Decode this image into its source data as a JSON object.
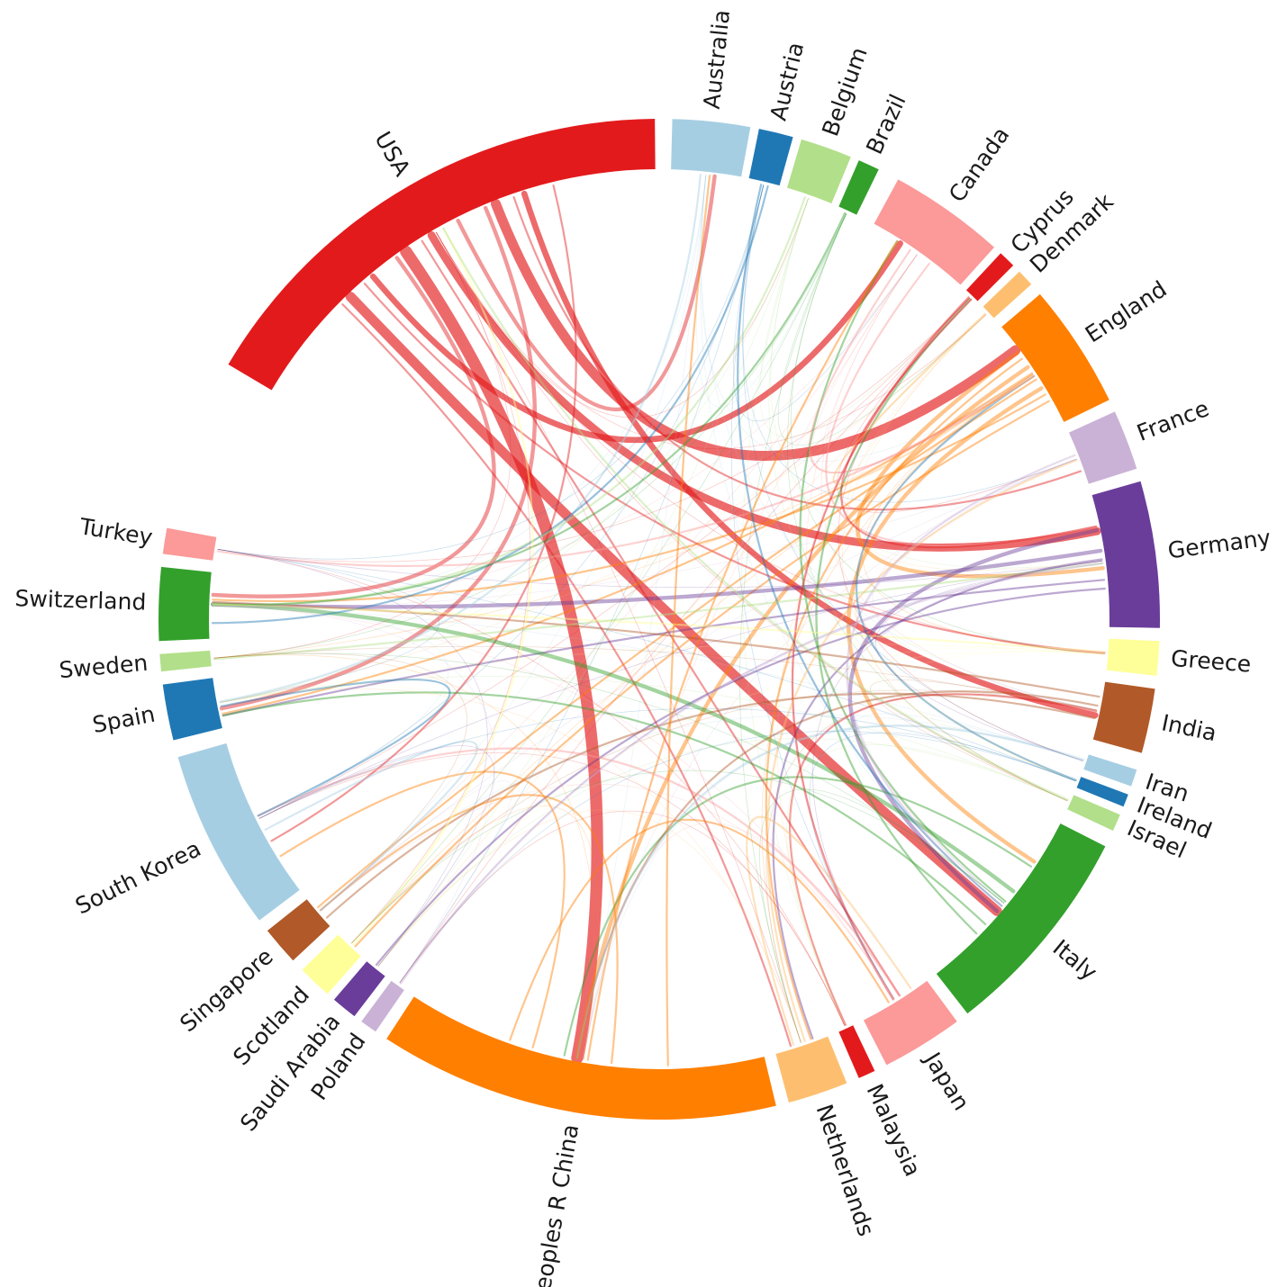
{
  "countries": [
    {
      "id": "australia",
      "name": "Australia",
      "color": "#a6cee3"
    },
    {
      "id": "austria",
      "name": "Austria",
      "color": "#1f78b4"
    },
    {
      "id": "belgium",
      "name": "Belgium",
      "color": "#b2df8a"
    },
    {
      "id": "brazil",
      "name": "Brazil",
      "color": "#33a02c"
    },
    {
      "id": "canada",
      "name": "Canada",
      "color": "#fb9a99"
    },
    {
      "id": "cyprus",
      "name": "Cyprus",
      "color": "#e31a1c"
    },
    {
      "id": "denmark",
      "name": "Denmark",
      "color": "#fdbf6f"
    },
    {
      "id": "england",
      "name": "England",
      "color": "#ff7f00"
    },
    {
      "id": "france",
      "name": "France",
      "color": "#cab2d6"
    },
    {
      "id": "germany",
      "name": "Germany",
      "color": "#6a3d9a"
    },
    {
      "id": "greece",
      "name": "Greece",
      "color": "#ffff99"
    },
    {
      "id": "india",
      "name": "India",
      "color": "#b15928"
    },
    {
      "id": "iran",
      "name": "Iran",
      "color": "#a6cee3"
    },
    {
      "id": "ireland",
      "name": "Ireland",
      "color": "#1f78b4"
    },
    {
      "id": "israel",
      "name": "Israel",
      "color": "#b2df8a"
    },
    {
      "id": "italy",
      "name": "Italy",
      "color": "#33a02c"
    },
    {
      "id": "japan",
      "name": "Japan",
      "color": "#fb9a99"
    },
    {
      "id": "malaysia",
      "name": "Malaysia",
      "color": "#e31a1c"
    },
    {
      "id": "netherlands",
      "name": "Netherlands",
      "color": "#fdbf6f"
    },
    {
      "id": "china",
      "name": "Peoples R China",
      "color": "#ff7f00"
    },
    {
      "id": "poland",
      "name": "Poland",
      "color": "#cab2d6"
    },
    {
      "id": "saudi_arabia",
      "name": "Saudi Arabia",
      "color": "#6a3d9a"
    },
    {
      "id": "scotland",
      "name": "Scotland",
      "color": "#ffff99"
    },
    {
      "id": "singapore",
      "name": "Singapore",
      "color": "#b15928"
    },
    {
      "id": "south_korea",
      "name": "South Korea",
      "color": "#a6cee3"
    },
    {
      "id": "spain",
      "name": "Spain",
      "color": "#1f78b4"
    },
    {
      "id": "sweden",
      "name": "Sweden",
      "color": "#b2df8a"
    },
    {
      "id": "switzerland",
      "name": "Switzerland",
      "color": "#33a02c"
    },
    {
      "id": "turkey",
      "name": "Turkey",
      "color": "#fb9a99"
    },
    {
      "id": "usa",
      "name": "USA",
      "color": "#e31a1c"
    }
  ],
  "links": [
    {
      "source": "usa",
      "target": "china",
      "weight": 6
    },
    {
      "source": "usa",
      "target": "england",
      "weight": 5
    },
    {
      "source": "usa",
      "target": "italy",
      "weight": 5
    },
    {
      "source": "usa",
      "target": "germany",
      "weight": 4
    },
    {
      "source": "usa",
      "target": "india",
      "weight": 3
    },
    {
      "source": "usa",
      "target": "canada",
      "weight": 3
    },
    {
      "source": "usa",
      "target": "australia",
      "weight": 2
    },
    {
      "source": "usa",
      "target": "south_korea",
      "weight": 1
    },
    {
      "source": "usa",
      "target": "switzerland",
      "weight": 2
    },
    {
      "source": "usa",
      "target": "spain",
      "weight": 2
    },
    {
      "source": "usa",
      "target": "netherlands",
      "weight": 1
    },
    {
      "source": "usa",
      "target": "japan",
      "weight": 1
    },
    {
      "source": "usa",
      "target": "france",
      "weight": 1
    },
    {
      "source": "usa",
      "target": "greece",
      "weight": 1
    },
    {
      "source": "england",
      "target": "china",
      "weight": 2
    },
    {
      "source": "england",
      "target": "italy",
      "weight": 2
    },
    {
      "source": "england",
      "target": "germany",
      "weight": 2
    },
    {
      "source": "england",
      "target": "spain",
      "weight": 1
    },
    {
      "source": "england",
      "target": "switzerland",
      "weight": 1
    },
    {
      "source": "england",
      "target": "netherlands",
      "weight": 1
    },
    {
      "source": "england",
      "target": "singapore",
      "weight": 1
    },
    {
      "source": "england",
      "target": "scotland",
      "weight": 1
    },
    {
      "source": "germany",
      "target": "switzerland",
      "weight": 2
    },
    {
      "source": "germany",
      "target": "spain",
      "weight": 1
    },
    {
      "source": "germany",
      "target": "italy",
      "weight": 2
    },
    {
      "source": "germany",
      "target": "netherlands",
      "weight": 1
    },
    {
      "source": "germany",
      "target": "saudi_arabia",
      "weight": 1
    },
    {
      "source": "italy",
      "target": "switzerland",
      "weight": 2
    },
    {
      "source": "italy",
      "target": "spain",
      "weight": 1
    },
    {
      "source": "italy",
      "target": "china",
      "weight": 1
    },
    {
      "source": "italy",
      "target": "canada",
      "weight": 1
    },
    {
      "source": "italy",
      "target": "cyprus",
      "weight": 1
    },
    {
      "source": "india",
      "target": "china",
      "weight": 1
    },
    {
      "source": "india",
      "target": "singapore",
      "weight": 1
    },
    {
      "source": "india",
      "target": "switzerland",
      "weight": 1
    },
    {
      "source": "china",
      "target": "singapore",
      "weight": 1
    },
    {
      "source": "china",
      "target": "south_korea",
      "weight": 1
    },
    {
      "source": "china",
      "target": "australia",
      "weight": 1
    },
    {
      "source": "china",
      "target": "canada",
      "weight": 1
    },
    {
      "source": "china",
      "target": "japan",
      "weight": 1
    },
    {
      "source": "australia",
      "target": "spain",
      "weight": 1
    },
    {
      "source": "austria",
      "target": "italy",
      "weight": 1
    },
    {
      "source": "austria",
      "target": "switzerland",
      "weight": 1
    },
    {
      "source": "belgium",
      "target": "switzerland",
      "weight": 1
    },
    {
      "source": "brazil",
      "target": "switzerland",
      "weight": 1
    },
    {
      "source": "canada",
      "target": "england",
      "weight": 1
    },
    {
      "source": "canada",
      "target": "germany",
      "weight": 1
    },
    {
      "source": "cyprus",
      "target": "japan",
      "weight": 1
    },
    {
      "source": "cyprus",
      "target": "germany",
      "weight": 1
    },
    {
      "source": "netherlands",
      "target": "france",
      "weight": 1
    },
    {
      "source": "japan",
      "target": "south_korea",
      "weight": 1
    },
    {
      "source": "malaysia",
      "target": "india",
      "weight": 1
    },
    {
      "source": "scotland",
      "target": "usa",
      "weight": 1
    },
    {
      "source": "spain",
      "target": "south_korea",
      "weight": 1
    },
    {
      "source": "france",
      "target": "italy",
      "weight": 1
    },
    {
      "source": "greece",
      "target": "switzerland",
      "weight": 1
    },
    {
      "source": "iran",
      "target": "china",
      "weight": 1
    },
    {
      "source": "ireland",
      "target": "england",
      "weight": 1
    },
    {
      "source": "israel",
      "target": "usa",
      "weight": 1
    },
    {
      "source": "turkey",
      "target": "england",
      "weight": 1
    },
    {
      "source": "sweden",
      "target": "germany",
      "weight": 1
    },
    {
      "source": "poland",
      "target": "germany",
      "weight": 1
    },
    {
      "source": "south_korea",
      "target": "singapore",
      "weight": 1
    },
    {
      "source": "denmark",
      "target": "england",
      "weight": 1
    },
    {
      "source": "netherlands",
      "target": "japan",
      "weight": 1
    }
  ]
}
